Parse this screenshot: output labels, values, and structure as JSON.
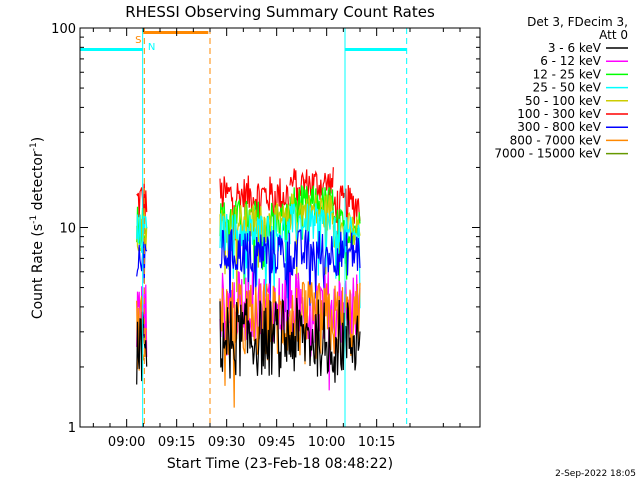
{
  "chart_data": {
    "type": "line",
    "title": "RHESSI Observing Summary Count Rates",
    "xlabel": "Start Time (23-Feb-18 08:48:22)",
    "ylabel_main": "Count Rate (s",
    "ylabel_sup1": "-1",
    "ylabel_mid": " detector",
    "ylabel_sup2": "-1",
    "ylabel_end": ")",
    "yscale": "log",
    "ylim": [
      1,
      100
    ],
    "yticks": [
      {
        "value": 1,
        "label": "1"
      },
      {
        "value": 10,
        "label": "10"
      },
      {
        "value": 100,
        "label": "100"
      }
    ],
    "xlim_min": [
      -14,
      106
    ],
    "xticks": [
      {
        "value": 0,
        "label": "09:00"
      },
      {
        "value": 15,
        "label": "09:15"
      },
      {
        "value": 30,
        "label": "09:30"
      },
      {
        "value": 45,
        "label": "09:45"
      },
      {
        "value": 60,
        "label": "10:00"
      },
      {
        "value": 75,
        "label": "10:15"
      }
    ],
    "legend": {
      "header": [
        "Det 3, FDecim 3,",
        "Att 0"
      ],
      "placement": "right",
      "entries": [
        {
          "label": "3 - 6 keV",
          "color": "#000000"
        },
        {
          "label": "6 - 12 keV",
          "color": "#ff00ff"
        },
        {
          "label": "12 - 25 keV",
          "color": "#00ff00"
        },
        {
          "label": "25 - 50 keV",
          "color": "#00ffff"
        },
        {
          "label": "50 - 100 keV",
          "color": "#cccc00"
        },
        {
          "label": "100 - 300 keV",
          "color": "#ff0000"
        },
        {
          "label": "300 - 800 keV",
          "color": "#0000ff"
        },
        {
          "label": "800 - 7000 keV",
          "color": "#ff8800"
        },
        {
          "label": "7000 - 15000 keV",
          "color": "#669900"
        }
      ]
    },
    "series": [
      {
        "name": "100 - 300 keV",
        "color": "#ff0000",
        "segments": [
          {
            "start": 3,
            "end": 6,
            "base": 13.5,
            "spread": 0.12
          },
          {
            "start": 28,
            "end": 49,
            "base": 14.5,
            "spread": 0.1
          },
          {
            "start": 49,
            "end": 62,
            "base": 16.5,
            "spread": 0.09
          },
          {
            "start": 62,
            "end": 70,
            "base": 13.0,
            "spread": 0.1
          }
        ]
      },
      {
        "name": "12 - 25 keV",
        "color": "#00ff00",
        "segments": [
          {
            "start": 3,
            "end": 6,
            "base": 10.5,
            "spread": 0.12
          },
          {
            "start": 28,
            "end": 49,
            "base": 11.0,
            "spread": 0.1
          },
          {
            "start": 49,
            "end": 62,
            "base": 13.0,
            "spread": 0.1
          },
          {
            "start": 62,
            "end": 70,
            "base": 10.0,
            "spread": 0.1
          }
        ]
      },
      {
        "name": "50 - 100 keV",
        "color": "#cccc00",
        "segments": [
          {
            "start": 3,
            "end": 6,
            "base": 10.0,
            "spread": 0.12
          },
          {
            "start": 28,
            "end": 49,
            "base": 10.5,
            "spread": 0.1
          },
          {
            "start": 49,
            "end": 62,
            "base": 12.0,
            "spread": 0.1
          },
          {
            "start": 62,
            "end": 70,
            "base": 9.5,
            "spread": 0.1
          }
        ]
      },
      {
        "name": "25 - 50 keV",
        "color": "#00ffff",
        "segments": [
          {
            "start": 3,
            "end": 6,
            "base": 9.0,
            "spread": 0.12
          },
          {
            "start": 28,
            "end": 49,
            "base": 9.5,
            "spread": 0.1
          },
          {
            "start": 49,
            "end": 62,
            "base": 10.5,
            "spread": 0.1
          },
          {
            "start": 62,
            "end": 70,
            "base": 9.0,
            "spread": 0.1
          }
        ]
      },
      {
        "name": "300 - 800 keV",
        "color": "#0000ff",
        "segments": [
          {
            "start": 3,
            "end": 6,
            "base": 7.0,
            "spread": 0.14
          },
          {
            "start": 28,
            "end": 70,
            "base": 7.5,
            "spread": 0.12
          }
        ]
      },
      {
        "name": "6 - 12 keV",
        "color": "#ff00ff",
        "segments": [
          {
            "start": 3,
            "end": 6,
            "base": 3.5,
            "spread": 0.2
          },
          {
            "start": 28,
            "end": 70,
            "base": 4.0,
            "spread": 0.18
          }
        ]
      },
      {
        "name": "800 - 7000 keV",
        "color": "#ff8800",
        "segments": [
          {
            "start": 3,
            "end": 6,
            "base": 3.0,
            "spread": 0.2
          },
          {
            "start": 28,
            "end": 70,
            "base": 3.4,
            "spread": 0.2
          }
        ]
      },
      {
        "name": "3 - 6 keV",
        "color": "#000000",
        "segments": [
          {
            "start": 3,
            "end": 6,
            "base": 2.5,
            "spread": 0.2
          },
          {
            "start": 28,
            "end": 70,
            "base": 2.8,
            "spread": 0.2
          }
        ]
      }
    ],
    "state_bars": [
      {
        "start": -14,
        "end": 4.8,
        "value": 78,
        "color": "#00ffff"
      },
      {
        "start": 65.5,
        "end": 84,
        "value": 78,
        "color": "#00ffff"
      },
      {
        "start": 5,
        "end": 24.5,
        "value": 95,
        "color": "#ff8800"
      }
    ],
    "markers": [
      {
        "x": 4.8,
        "color": "#00ffff",
        "style": "solid"
      },
      {
        "x": 5.3,
        "color": "#ff8800",
        "style": "dashed"
      },
      {
        "x": 25,
        "color": "#ff8800",
        "style": "dashed"
      },
      {
        "x": 65.5,
        "color": "#00ffff",
        "style": "solid"
      },
      {
        "x": 84,
        "color": "#00ffff",
        "style": "dashed"
      }
    ],
    "flags": [
      {
        "x": 3.5,
        "text": "S",
        "color": "#ff8800",
        "row": "upper"
      },
      {
        "x": 7.5,
        "text": "N",
        "color": "#00ffff",
        "row": "lower"
      }
    ],
    "date_stamp": "2-Sep-2022 18:05"
  }
}
